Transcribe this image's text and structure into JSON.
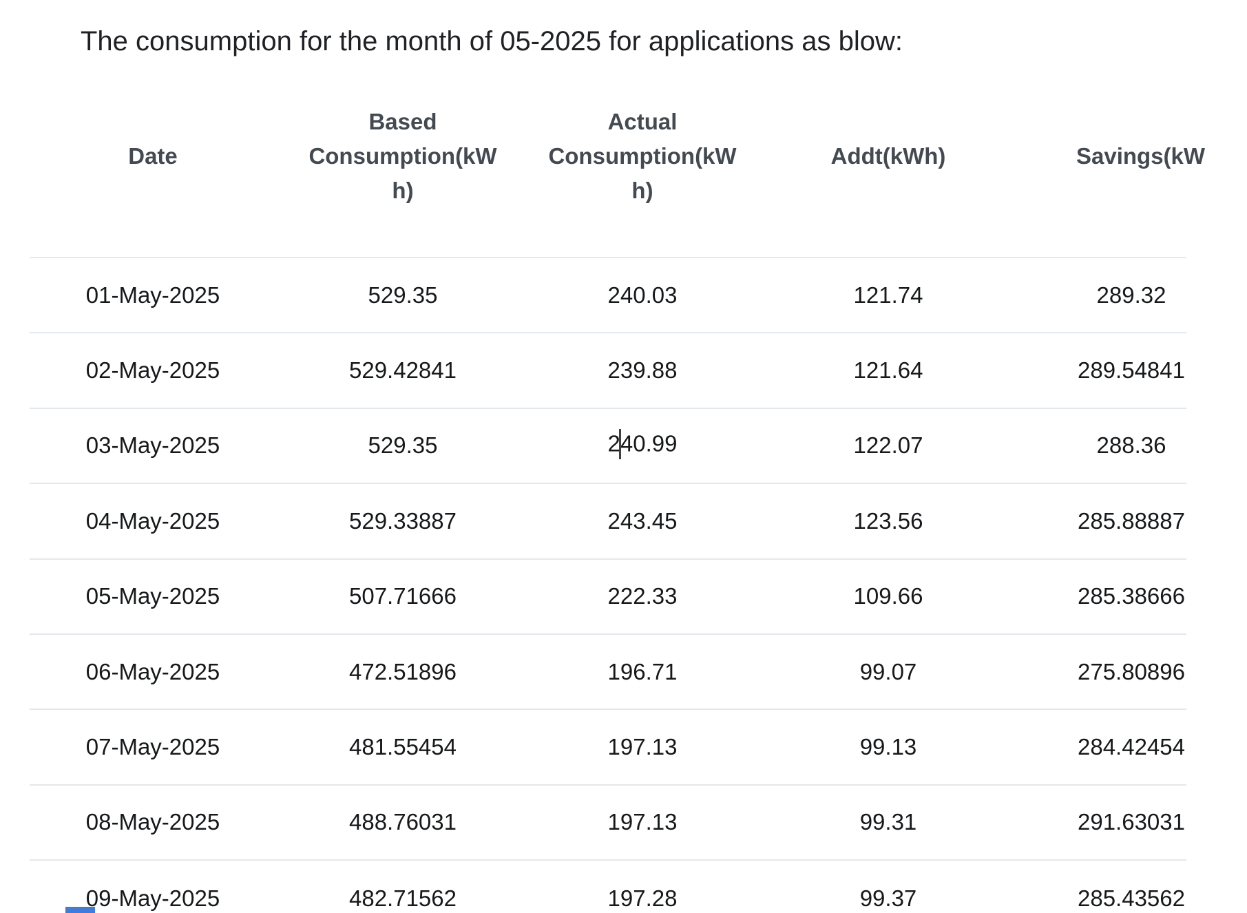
{
  "page": {
    "title": "The consumption for the month of 05-2025 for applications as blow:"
  },
  "table": {
    "columns": [
      {
        "id": "date",
        "label": "Date"
      },
      {
        "id": "based_consumption",
        "label": "Based\nConsumption(kW\nh)"
      },
      {
        "id": "actual_consumption",
        "label": "Actual\nConsumption(kW\nh)"
      },
      {
        "id": "addt",
        "label": "Addt(kWh)"
      },
      {
        "id": "savings",
        "label": "Savings(kW"
      }
    ],
    "rows": [
      [
        "01-May-2025",
        "529.35",
        "240.03",
        "121.74",
        "289.32"
      ],
      [
        "02-May-2025",
        "529.42841",
        "239.88",
        "121.64",
        "289.54841"
      ],
      [
        "03-May-2025",
        "529.35",
        "240.99",
        "122.07",
        "288.36"
      ],
      [
        "04-May-2025",
        "529.33887",
        "243.45",
        "123.56",
        "285.88887"
      ],
      [
        "05-May-2025",
        "507.71666",
        "222.33",
        "109.66",
        "285.38666"
      ],
      [
        "06-May-2025",
        "472.51896",
        "196.71",
        "99.07",
        "275.80896"
      ],
      [
        "07-May-2025",
        "481.55454",
        "197.13",
        "99.13",
        "284.42454"
      ],
      [
        "08-May-2025",
        "488.76031",
        "197.13",
        "99.31",
        "291.63031"
      ],
      [
        "09-May-2025",
        "482.71562",
        "197.28",
        "99.37",
        "285.43562"
      ]
    ],
    "edit_state": {
      "row_index": 2,
      "col_index": 2,
      "text_before_caret": "2",
      "text_after_caret": "40.99"
    }
  },
  "colors": {
    "title-text": "#202124",
    "header-text": "#434a51",
    "body-text": "#16181a",
    "row-border": "#e3e8ee",
    "caret": "#3f3f3f",
    "clipped-blue": "#3e7de0"
  }
}
